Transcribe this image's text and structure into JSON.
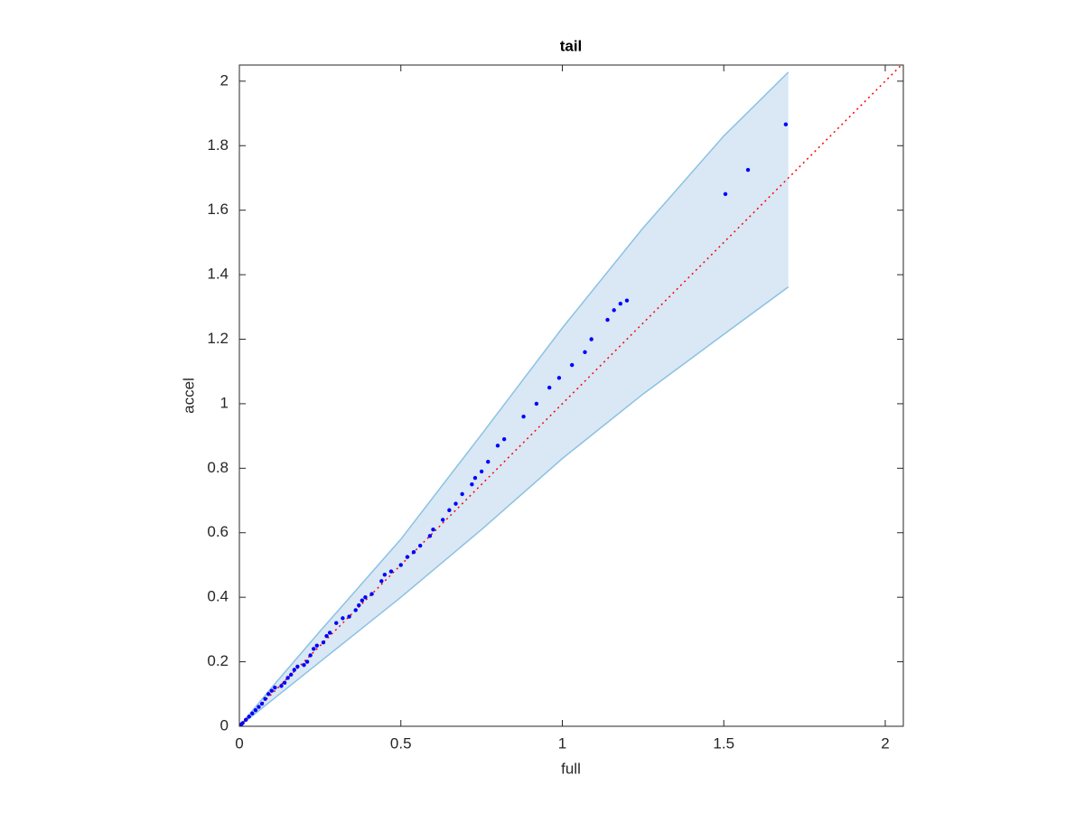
{
  "chart_data": {
    "type": "scatter",
    "title": "tail",
    "x_label": "full",
    "y_label": "accel",
    "x": [
      0.005,
      0.01,
      0.02,
      0.03,
      0.04,
      0.05,
      0.06,
      0.07,
      0.08,
      0.09,
      0.1,
      0.11,
      0.13,
      0.14,
      0.15,
      0.16,
      0.17,
      0.18,
      0.2,
      0.21,
      0.22,
      0.23,
      0.24,
      0.26,
      0.27,
      0.28,
      0.3,
      0.32,
      0.34,
      0.36,
      0.37,
      0.38,
      0.39,
      0.41,
      0.44,
      0.45,
      0.47,
      0.5,
      0.52,
      0.54,
      0.56,
      0.59,
      0.6,
      0.63,
      0.65,
      0.67,
      0.69,
      0.72,
      0.73,
      0.75,
      0.77,
      0.8,
      0.82,
      0.88,
      0.92,
      0.96,
      0.99,
      1.03,
      1.07,
      1.09,
      1.14,
      1.16,
      1.18,
      1.2,
      1.505,
      1.575,
      1.692
    ],
    "y": [
      0.005,
      0.01,
      0.02,
      0.03,
      0.04,
      0.05,
      0.06,
      0.07,
      0.085,
      0.1,
      0.11,
      0.12,
      0.125,
      0.135,
      0.15,
      0.16,
      0.175,
      0.185,
      0.19,
      0.2,
      0.22,
      0.24,
      0.25,
      0.26,
      0.28,
      0.29,
      0.32,
      0.335,
      0.34,
      0.36,
      0.375,
      0.39,
      0.4,
      0.41,
      0.45,
      0.47,
      0.48,
      0.5,
      0.525,
      0.54,
      0.56,
      0.59,
      0.61,
      0.64,
      0.67,
      0.69,
      0.72,
      0.75,
      0.77,
      0.79,
      0.82,
      0.87,
      0.89,
      0.96,
      1.0,
      1.05,
      1.08,
      1.12,
      1.16,
      1.2,
      1.26,
      1.29,
      1.31,
      1.32,
      1.65,
      1.725,
      1.866
    ],
    "color": "#0000ff",
    "band": {
      "x": [
        0,
        0.1,
        0.25,
        0.5,
        0.75,
        1,
        1.25,
        1.5,
        1.7
      ],
      "upper": [
        0,
        0.12,
        0.295,
        0.58,
        0.905,
        1.235,
        1.545,
        1.83,
        2.028
      ],
      "lower": [
        0,
        0.08,
        0.2,
        0.4,
        0.61,
        0.83,
        1.03,
        1.215,
        1.362
      ],
      "color": "#8cc1e3",
      "fill": "#d9e8f4"
    },
    "identity_line": true,
    "identity_color": "#ff0000",
    "xlim": [
      0,
      2.056
    ],
    "ylim": [
      0,
      2.05
    ],
    "xticks": [
      0,
      0.5,
      1,
      1.5,
      2
    ],
    "yticks": [
      0,
      0.2,
      0.4,
      0.6,
      0.8,
      1,
      1.2,
      1.4,
      1.6,
      1.8,
      2
    ],
    "grid": false
  }
}
